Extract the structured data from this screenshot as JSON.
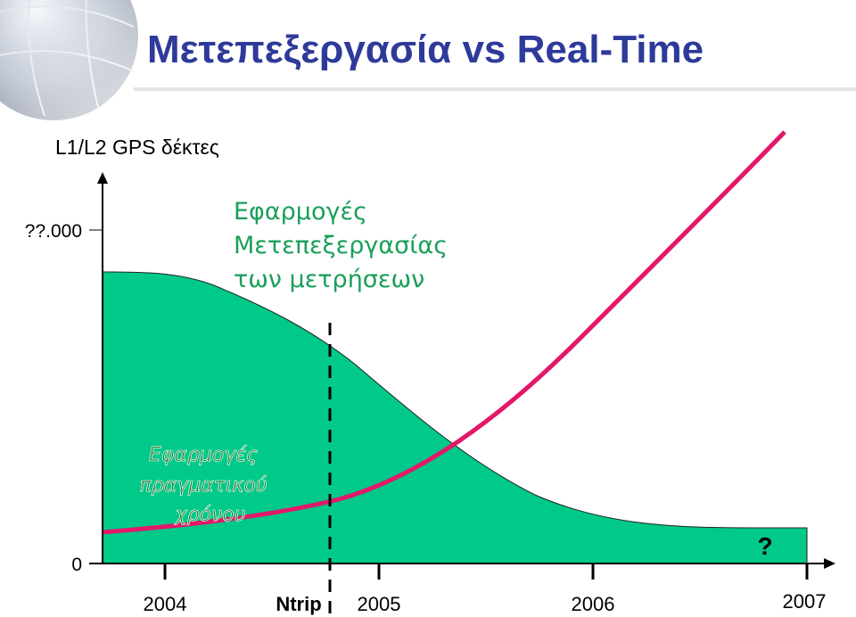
{
  "title": "Μετεπεξεργασία vs Real-Time",
  "receivers_label": "L1/L2 GPS δέκτες",
  "y_axis": {
    "top_label": "??.000",
    "zero_label": "0"
  },
  "x_axis": {
    "labels": [
      "2004",
      "2005",
      "2006",
      "2007"
    ],
    "ntrip_label": "Ntrip"
  },
  "post_processing_label": [
    "Εφαρμογές",
    "Μετεπεξεργασίας",
    "των μετρήσεων"
  ],
  "real_time_label": [
    "Εφαρμογές",
    "πραγματικού",
    "χρόνου"
  ],
  "unknown_marker": "?"
}
